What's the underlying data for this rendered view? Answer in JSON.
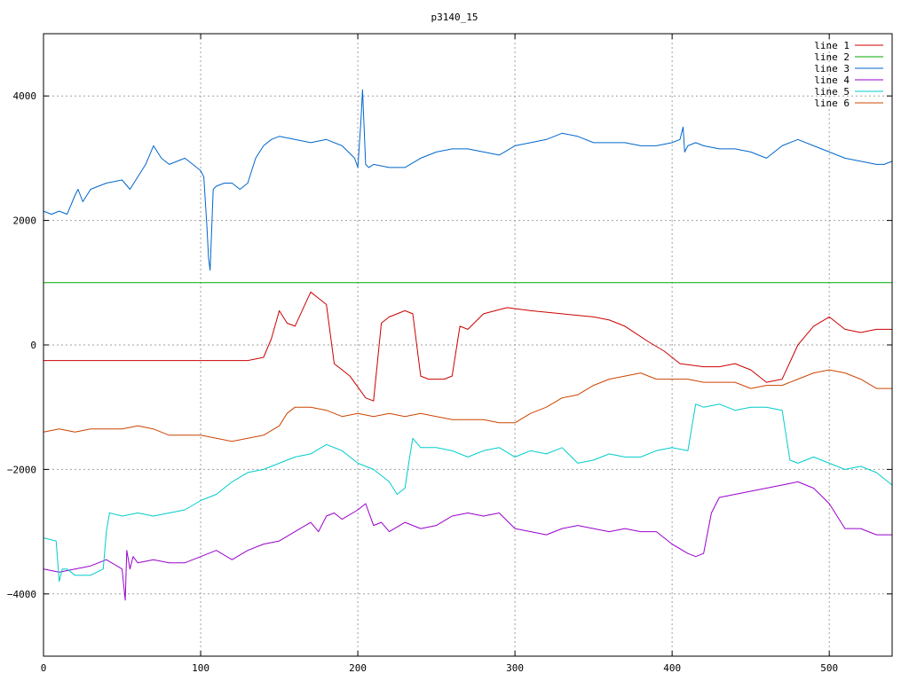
{
  "chart_data": {
    "type": "line",
    "title": "p3140_15",
    "xlabel": "",
    "ylabel": "",
    "xlim": [
      0,
      540
    ],
    "ylim": [
      -5000,
      5000
    ],
    "xticks": [
      0,
      100,
      200,
      300,
      400,
      500
    ],
    "yticks": [
      -4000,
      -2000,
      0,
      2000,
      4000
    ],
    "grid": true,
    "legend_position": "top-right",
    "series": [
      {
        "name": "line 1",
        "color": "#cc0000",
        "x": [
          0,
          130,
          140,
          145,
          150,
          155,
          160,
          170,
          175,
          180,
          185,
          195,
          205,
          210,
          215,
          220,
          230,
          235,
          240,
          245,
          255,
          260,
          265,
          270,
          280,
          295,
          310,
          330,
          350,
          360,
          370,
          385,
          395,
          405,
          420,
          430,
          440,
          450,
          460,
          470,
          480,
          490,
          500,
          510,
          520,
          530,
          540
        ],
        "y": [
          -250,
          -250,
          -200,
          100,
          550,
          350,
          300,
          850,
          750,
          650,
          -300,
          -500,
          -850,
          -900,
          350,
          450,
          550,
          500,
          -500,
          -550,
          -550,
          -500,
          300,
          250,
          500,
          600,
          550,
          500,
          450,
          400,
          300,
          50,
          -100,
          -300,
          -350,
          -350,
          -300,
          -400,
          -600,
          -550,
          0,
          300,
          450,
          250,
          200,
          250,
          250
        ]
      },
      {
        "name": "line 2",
        "color": "#00aa00",
        "x": [
          0,
          540
        ],
        "y": [
          1000,
          1000
        ]
      },
      {
        "name": "line 3",
        "color": "#0066cc",
        "x": [
          0,
          5,
          10,
          15,
          20,
          22,
          25,
          30,
          40,
          50,
          55,
          60,
          65,
          70,
          75,
          80,
          85,
          90,
          95,
          100,
          102,
          104,
          105,
          106,
          108,
          110,
          115,
          120,
          125,
          130,
          135,
          140,
          145,
          150,
          160,
          170,
          180,
          190,
          198,
          200,
          202,
          203,
          205,
          207,
          210,
          220,
          230,
          240,
          250,
          260,
          270,
          280,
          290,
          300,
          310,
          320,
          330,
          340,
          350,
          360,
          370,
          380,
          390,
          400,
          405,
          407,
          408,
          410,
          415,
          420,
          430,
          440,
          450,
          460,
          470,
          480,
          490,
          500,
          510,
          520,
          530,
          535,
          540
        ],
        "y": [
          2150,
          2100,
          2150,
          2100,
          2400,
          2500,
          2300,
          2500,
          2600,
          2650,
          2500,
          2700,
          2900,
          3200,
          3000,
          2900,
          2950,
          3000,
          2900,
          2800,
          2700,
          1900,
          1400,
          1200,
          2500,
          2550,
          2600,
          2600,
          2500,
          2600,
          3000,
          3200,
          3300,
          3350,
          3300,
          3250,
          3300,
          3200,
          3000,
          2850,
          3600,
          4100,
          2900,
          2850,
          2900,
          2850,
          2850,
          3000,
          3100,
          3150,
          3150,
          3100,
          3050,
          3200,
          3250,
          3300,
          3400,
          3350,
          3250,
          3250,
          3250,
          3200,
          3200,
          3250,
          3300,
          3500,
          3100,
          3200,
          3250,
          3200,
          3150,
          3150,
          3100,
          3000,
          3200,
          3300,
          3200,
          3100,
          3000,
          2950,
          2900,
          2900,
          2950
        ]
      },
      {
        "name": "line 4",
        "color": "#9900cc",
        "x": [
          0,
          10,
          20,
          30,
          40,
          50,
          52,
          53,
          55,
          57,
          60,
          70,
          80,
          90,
          100,
          110,
          120,
          130,
          140,
          150,
          160,
          170,
          175,
          180,
          185,
          190,
          200,
          205,
          210,
          215,
          220,
          230,
          240,
          250,
          260,
          270,
          280,
          290,
          300,
          310,
          320,
          330,
          340,
          350,
          360,
          370,
          380,
          390,
          400,
          410,
          415,
          420,
          425,
          430,
          440,
          450,
          460,
          470,
          480,
          490,
          500,
          510,
          520,
          530,
          540
        ],
        "y": [
          -3600,
          -3650,
          -3600,
          -3550,
          -3450,
          -3600,
          -4100,
          -3300,
          -3600,
          -3400,
          -3500,
          -3450,
          -3500,
          -3500,
          -3400,
          -3300,
          -3450,
          -3300,
          -3200,
          -3150,
          -3000,
          -2850,
          -3000,
          -2750,
          -2700,
          -2800,
          -2650,
          -2550,
          -2900,
          -2850,
          -3000,
          -2850,
          -2950,
          -2900,
          -2750,
          -2700,
          -2750,
          -2700,
          -2950,
          -3000,
          -3050,
          -2950,
          -2900,
          -2950,
          -3000,
          -2950,
          -3000,
          -3000,
          -3200,
          -3350,
          -3400,
          -3350,
          -2700,
          -2450,
          -2400,
          -2350,
          -2300,
          -2250,
          -2200,
          -2300,
          -2550,
          -2950,
          -2950,
          -3050,
          -3050
        ]
      },
      {
        "name": "line 5",
        "color": "#00cccc",
        "x": [
          0,
          8,
          10,
          12,
          15,
          20,
          30,
          38,
          40,
          42,
          50,
          60,
          70,
          80,
          90,
          100,
          110,
          120,
          130,
          140,
          150,
          160,
          170,
          180,
          190,
          200,
          210,
          220,
          225,
          230,
          233,
          235,
          240,
          250,
          260,
          270,
          280,
          290,
          300,
          310,
          320,
          330,
          340,
          350,
          360,
          370,
          380,
          390,
          400,
          410,
          415,
          420,
          430,
          440,
          450,
          460,
          470,
          475,
          480,
          490,
          500,
          510,
          520,
          530,
          540
        ],
        "y": [
          -3100,
          -3150,
          -3800,
          -3600,
          -3600,
          -3700,
          -3700,
          -3600,
          -3000,
          -2700,
          -2750,
          -2700,
          -2750,
          -2700,
          -2650,
          -2500,
          -2400,
          -2200,
          -2050,
          -2000,
          -1900,
          -1800,
          -1750,
          -1600,
          -1700,
          -1900,
          -2000,
          -2200,
          -2400,
          -2300,
          -1800,
          -1500,
          -1650,
          -1650,
          -1700,
          -1800,
          -1700,
          -1650,
          -1800,
          -1700,
          -1750,
          -1650,
          -1900,
          -1850,
          -1750,
          -1800,
          -1800,
          -1700,
          -1650,
          -1700,
          -950,
          -1000,
          -950,
          -1050,
          -1000,
          -1000,
          -1050,
          -1850,
          -1900,
          -1800,
          -1900,
          -2000,
          -1950,
          -2050,
          -2250
        ]
      },
      {
        "name": "line 6",
        "color": "#cc4400",
        "x": [
          0,
          10,
          20,
          30,
          40,
          50,
          60,
          70,
          80,
          90,
          100,
          110,
          120,
          130,
          140,
          150,
          155,
          160,
          170,
          180,
          190,
          200,
          210,
          220,
          230,
          240,
          250,
          260,
          270,
          280,
          290,
          300,
          310,
          320,
          330,
          340,
          350,
          360,
          370,
          380,
          390,
          400,
          410,
          420,
          430,
          440,
          450,
          460,
          470,
          480,
          490,
          500,
          510,
          520,
          530,
          540
        ],
        "y": [
          -1400,
          -1350,
          -1400,
          -1350,
          -1350,
          -1350,
          -1300,
          -1350,
          -1450,
          -1450,
          -1450,
          -1500,
          -1550,
          -1500,
          -1450,
          -1300,
          -1100,
          -1000,
          -1000,
          -1050,
          -1150,
          -1100,
          -1150,
          -1100,
          -1150,
          -1100,
          -1150,
          -1200,
          -1200,
          -1200,
          -1250,
          -1250,
          -1100,
          -1000,
          -850,
          -800,
          -650,
          -550,
          -500,
          -450,
          -550,
          -550,
          -550,
          -600,
          -600,
          -600,
          -700,
          -650,
          -650,
          -550,
          -450,
          -400,
          -450,
          -550,
          -700,
          -700
        ]
      }
    ]
  }
}
